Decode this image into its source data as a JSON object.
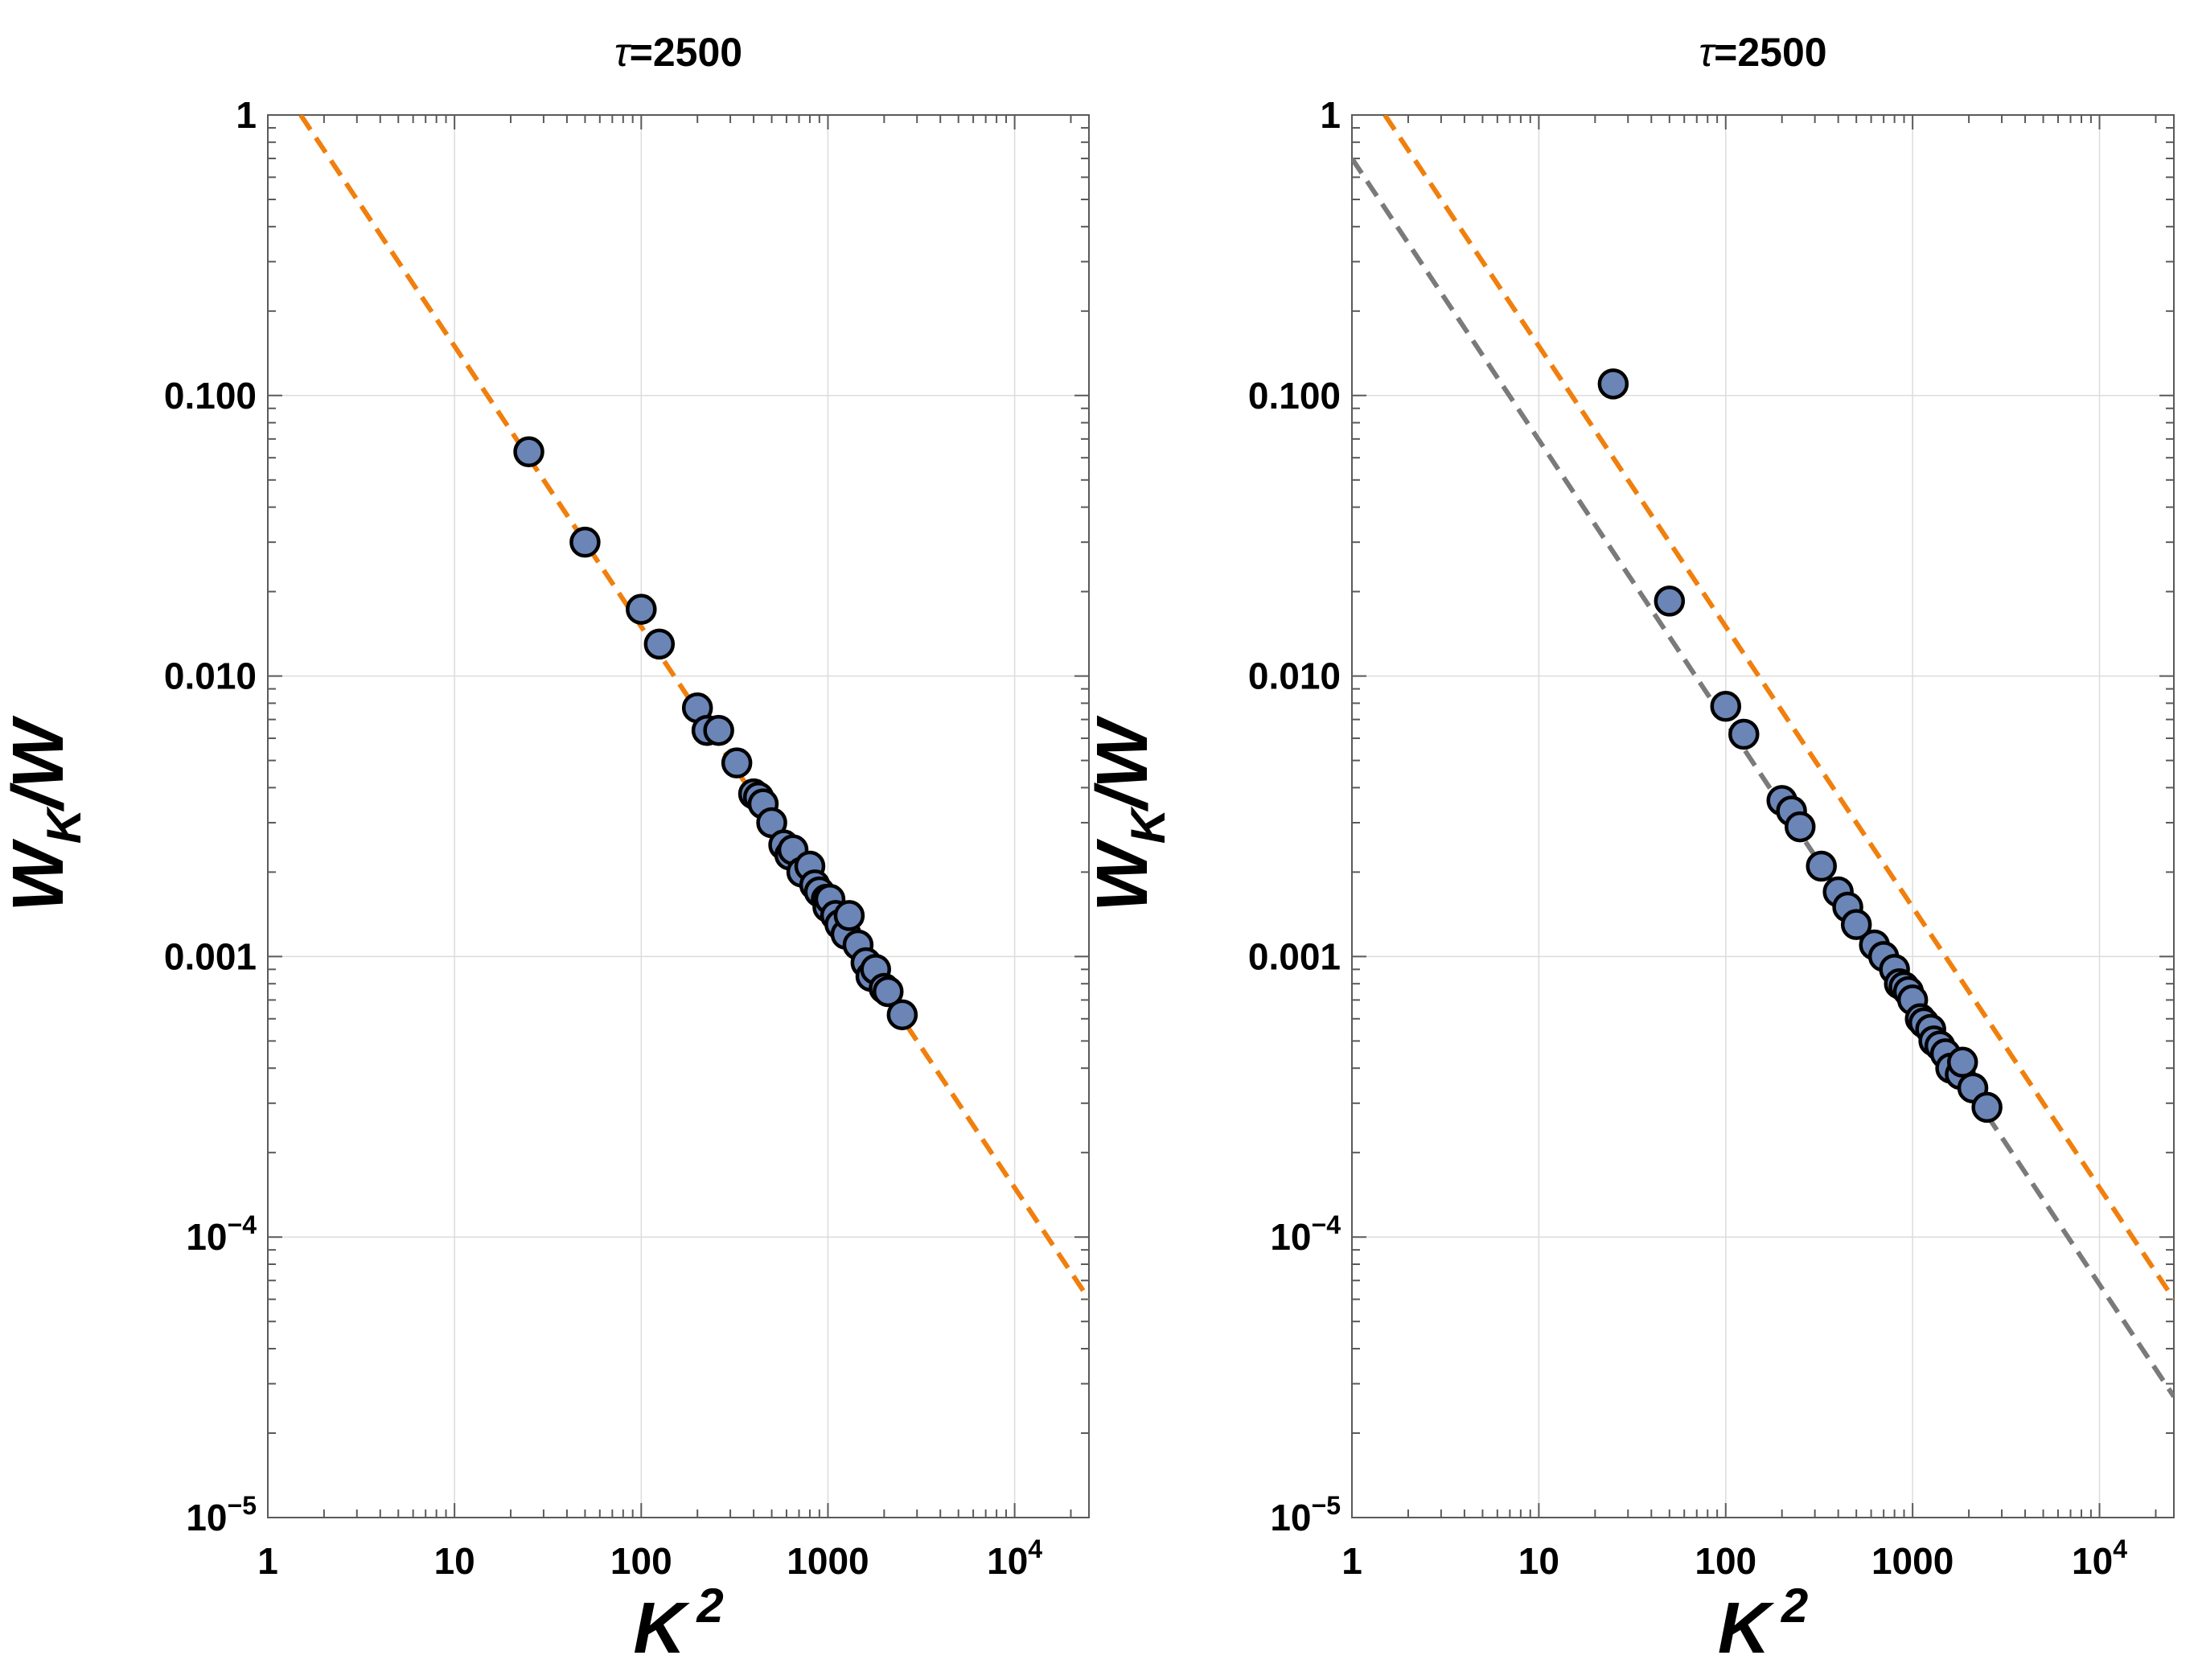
{
  "chart_data": [
    {
      "type": "scatter",
      "title_symbol": "τ",
      "title_value": "=2500",
      "xlabel": "K",
      "xlabel_sup": "2",
      "ylabel": "W",
      "ylabel_sub": "K",
      "ylabel_rest": "/W",
      "xscale": "log",
      "yscale": "log",
      "xlim": [
        1,
        25000
      ],
      "ylim": [
        1e-05,
        1
      ],
      "grid": true,
      "x_ticks": [
        {
          "value": 1,
          "label": "1"
        },
        {
          "value": 10,
          "label": "10"
        },
        {
          "value": 100,
          "label": "100"
        },
        {
          "value": 1000,
          "label": "1000"
        },
        {
          "value": 10000,
          "label": "10",
          "sup": "4"
        }
      ],
      "y_ticks": [
        {
          "value": 1,
          "label": "1"
        },
        {
          "value": 0.1,
          "label": "0.100"
        },
        {
          "value": 0.01,
          "label": "0.010"
        },
        {
          "value": 0.001,
          "label": "0.001"
        },
        {
          "value": 0.0001,
          "label": "10",
          "sup": "−4"
        },
        {
          "value": 1e-05,
          "label": "10",
          "sup": "−5"
        }
      ],
      "lines": [
        {
          "name": "fit-orange",
          "color": "#f07f0d",
          "x1": 1.5,
          "y1": 1.0,
          "x2": 25000,
          "y2": 6e-05
        }
      ],
      "marker_color": "#6a85b6",
      "x": [
        25,
        50,
        100,
        125,
        200,
        225,
        260,
        325,
        400,
        425,
        450,
        500,
        580,
        625,
        650,
        725,
        800,
        850,
        900,
        980,
        1000,
        1025,
        1100,
        1160,
        1250,
        1300,
        1450,
        1600,
        1700,
        1800,
        2000,
        2100,
        2500
      ],
      "y": [
        0.063,
        0.03,
        0.0173,
        0.013,
        0.0077,
        0.0064,
        0.0064,
        0.0049,
        0.0038,
        0.0037,
        0.0035,
        0.003,
        0.0025,
        0.0023,
        0.0024,
        0.002,
        0.0021,
        0.0018,
        0.0017,
        0.0016,
        0.0015,
        0.0016,
        0.0014,
        0.0013,
        0.0012,
        0.0014,
        0.0011,
        0.00095,
        0.00085,
        0.0009,
        0.00077,
        0.00075,
        0.00062
      ]
    },
    {
      "type": "scatter",
      "title_symbol": "τ",
      "title_value": "=2500",
      "xlabel": "K",
      "xlabel_sup": "2",
      "ylabel": "W",
      "ylabel_sub": "K",
      "ylabel_rest": "/W",
      "xscale": "log",
      "yscale": "log",
      "xlim": [
        1,
        25000
      ],
      "ylim": [
        1e-05,
        1
      ],
      "grid": true,
      "x_ticks": [
        {
          "value": 1,
          "label": "1"
        },
        {
          "value": 10,
          "label": "10"
        },
        {
          "value": 100,
          "label": "100"
        },
        {
          "value": 1000,
          "label": "1000"
        },
        {
          "value": 10000,
          "label": "10",
          "sup": "4"
        }
      ],
      "y_ticks": [
        {
          "value": 1,
          "label": "1"
        },
        {
          "value": 0.1,
          "label": "0.100"
        },
        {
          "value": 0.01,
          "label": "0.010"
        },
        {
          "value": 0.001,
          "label": "0.001"
        },
        {
          "value": 0.0001,
          "label": "10",
          "sup": "−4"
        },
        {
          "value": 1e-05,
          "label": "10",
          "sup": "−5"
        }
      ],
      "lines": [
        {
          "name": "fit-orange",
          "color": "#f07f0d",
          "x1": 1.5,
          "y1": 1.0,
          "x2": 25000,
          "y2": 6e-05
        },
        {
          "name": "fit-gray",
          "color": "#7a7a7a",
          "x1": 1.0,
          "y1": 0.7,
          "x2": 25000,
          "y2": 2.7e-05
        }
      ],
      "marker_color": "#6a85b6",
      "x": [
        25,
        50,
        100,
        125,
        200,
        225,
        250,
        325,
        400,
        450,
        500,
        625,
        700,
        800,
        850,
        900,
        950,
        1000,
        1100,
        1150,
        1250,
        1300,
        1400,
        1500,
        1600,
        1800,
        1850,
        2100,
        2500
      ],
      "y": [
        0.11,
        0.0185,
        0.0078,
        0.0062,
        0.0036,
        0.0033,
        0.0029,
        0.0021,
        0.0017,
        0.0015,
        0.0013,
        0.0011,
        0.001,
        0.0009,
        0.0008,
        0.00078,
        0.00075,
        0.0007,
        0.0006,
        0.00058,
        0.00055,
        0.0005,
        0.00048,
        0.00045,
        0.0004,
        0.00038,
        0.00042,
        0.00034,
        0.00029
      ]
    }
  ]
}
